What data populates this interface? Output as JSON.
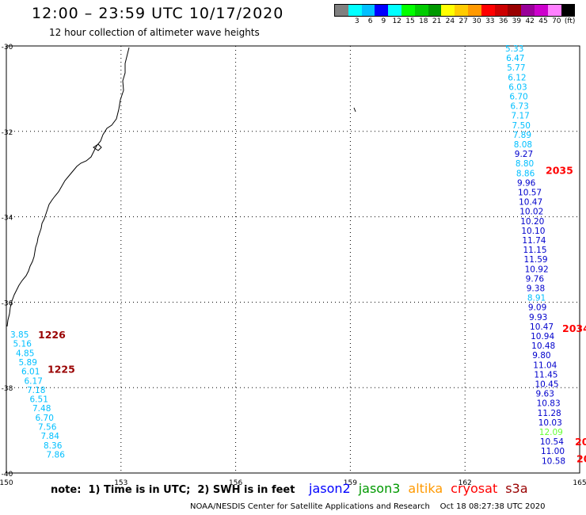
{
  "header": {
    "title": "12:00 – 23:59 UTC 10/17/2020",
    "subtitle": "12 hour collection of altimeter wave heights"
  },
  "legend": {
    "colors": [
      "#808080",
      "#00ffff",
      "#00bfff",
      "#0000ff",
      "#00ffff",
      "#00ff00",
      "#00cc00",
      "#009900",
      "#ffff00",
      "#ffcc00",
      "#ff9900",
      "#ff0000",
      "#cc0000",
      "#990000",
      "#990099",
      "#cc00cc",
      "#ff80ff",
      "#000000"
    ],
    "labels": [
      {
        "text": "3",
        "slot": 1
      },
      {
        "text": "6",
        "slot": 2
      },
      {
        "text": "9",
        "slot": 3
      },
      {
        "text": "12",
        "slot": 4
      },
      {
        "text": "15",
        "slot": 5
      },
      {
        "text": "18",
        "slot": 6
      },
      {
        "text": "21",
        "slot": 7
      },
      {
        "text": "24",
        "slot": 8
      },
      {
        "text": "27",
        "slot": 9
      },
      {
        "text": "30",
        "slot": 10
      },
      {
        "text": "33",
        "slot": 11
      },
      {
        "text": "36",
        "slot": 12
      },
      {
        "text": "39",
        "slot": 13
      },
      {
        "text": "42",
        "slot": 14
      },
      {
        "text": "45",
        "slot": 15
      },
      {
        "text": "70",
        "slot": 16
      },
      {
        "text": "(ft)",
        "slot": 17
      }
    ]
  },
  "axes": {
    "x_ticks": [
      "150",
      "153",
      "156",
      "159",
      "162",
      "165"
    ],
    "y_ticks": [
      "-30",
      "-32",
      "-34",
      "-36",
      "-38",
      "-40"
    ]
  },
  "tracks": {
    "left": {
      "time_labels": [
        {
          "text": "1226",
          "color": "#990000",
          "lat": -36.85
        },
        {
          "text": "1225",
          "color": "#990000",
          "lat": -37.65
        }
      ],
      "values": [
        {
          "v": "3.85",
          "c": "#00bfff"
        },
        {
          "v": "5.16",
          "c": "#00bfff"
        },
        {
          "v": "4.85",
          "c": "#00bfff"
        },
        {
          "v": "5.89",
          "c": "#00bfff"
        },
        {
          "v": "6.01",
          "c": "#00bfff"
        },
        {
          "v": "6.17",
          "c": "#00bfff"
        },
        {
          "v": "7.18",
          "c": "#00bfff"
        },
        {
          "v": "6.51",
          "c": "#00bfff"
        },
        {
          "v": "7.48",
          "c": "#00bfff"
        },
        {
          "v": "6.70",
          "c": "#00bfff"
        },
        {
          "v": "7.56",
          "c": "#00bfff"
        },
        {
          "v": "7.84",
          "c": "#00bfff"
        },
        {
          "v": "8.36",
          "c": "#00bfff"
        },
        {
          "v": "7.86",
          "c": "#00bfff"
        }
      ]
    },
    "right": {
      "time_labels": [
        {
          "text": "2035",
          "color": "#ff0000",
          "lat": -33.0
        },
        {
          "text": "2034",
          "color": "#ff0000",
          "lat": -36.7
        },
        {
          "text": "20",
          "color": "#ff0000",
          "lat": -39.35
        },
        {
          "text": "20",
          "color": "#ff0000",
          "lat": -39.75
        }
      ],
      "values": [
        {
          "v": "5.33",
          "c": "#00bfff"
        },
        {
          "v": "6.47",
          "c": "#00bfff"
        },
        {
          "v": "5.77",
          "c": "#00bfff"
        },
        {
          "v": "6.12",
          "c": "#00bfff"
        },
        {
          "v": "6.03",
          "c": "#00bfff"
        },
        {
          "v": "6.70",
          "c": "#00bfff"
        },
        {
          "v": "6.73",
          "c": "#00bfff"
        },
        {
          "v": "7.17",
          "c": "#00bfff"
        },
        {
          "v": "7.50",
          "c": "#00bfff"
        },
        {
          "v": "7.89",
          "c": "#00bfff"
        },
        {
          "v": "8.08",
          "c": "#00bfff"
        },
        {
          "v": "9.27",
          "c": "#0000cc"
        },
        {
          "v": "8.80",
          "c": "#00bfff"
        },
        {
          "v": "8.86",
          "c": "#00bfff"
        },
        {
          "v": "9.96",
          "c": "#0000cc"
        },
        {
          "v": "10.57",
          "c": "#0000cc"
        },
        {
          "v": "10.47",
          "c": "#0000cc"
        },
        {
          "v": "10.02",
          "c": "#0000cc"
        },
        {
          "v": "10.20",
          "c": "#0000cc"
        },
        {
          "v": "10.10",
          "c": "#0000cc"
        },
        {
          "v": "11.74",
          "c": "#0000cc"
        },
        {
          "v": "11.15",
          "c": "#0000cc"
        },
        {
          "v": "11.59",
          "c": "#0000cc"
        },
        {
          "v": "10.92",
          "c": "#0000cc"
        },
        {
          "v": "9.76",
          "c": "#0000cc"
        },
        {
          "v": "9.38",
          "c": "#0000cc"
        },
        {
          "v": "8.91",
          "c": "#00bfff"
        },
        {
          "v": "9.09",
          "c": "#0000cc"
        },
        {
          "v": "9.93",
          "c": "#0000cc"
        },
        {
          "v": "10.47",
          "c": "#0000cc"
        },
        {
          "v": "10.94",
          "c": "#0000cc"
        },
        {
          "v": "10.48",
          "c": "#0000cc"
        },
        {
          "v": "9.80",
          "c": "#0000cc"
        },
        {
          "v": "11.04",
          "c": "#0000cc"
        },
        {
          "v": "11.45",
          "c": "#0000cc"
        },
        {
          "v": "10.45",
          "c": "#0000cc"
        },
        {
          "v": "9.63",
          "c": "#0000cc"
        },
        {
          "v": "10.83",
          "c": "#0000cc"
        },
        {
          "v": "11.28",
          "c": "#0000cc"
        },
        {
          "v": "10.03",
          "c": "#0000cc"
        },
        {
          "v": "12.09",
          "c": "#66ff33"
        },
        {
          "v": "10.54",
          "c": "#0000cc"
        },
        {
          "v": "11.00",
          "c": "#0000cc"
        },
        {
          "v": "10.58",
          "c": "#0000cc"
        }
      ]
    }
  },
  "footer": {
    "note": "note:  1) Time is in UTC;  2) SWH is in feet",
    "satellites": [
      {
        "name": "jason2",
        "color": "#0000ff"
      },
      {
        "name": "jason3",
        "color": "#009900"
      },
      {
        "name": "altika",
        "color": "#ff9900"
      },
      {
        "name": "cryosat",
        "color": "#ff0000"
      },
      {
        "name": "s3a",
        "color": "#990000"
      }
    ],
    "credit": "NOAA/NESDIS Center for Satellite Applications and Research    Oct 18 08:27:38 UTC 2020"
  }
}
